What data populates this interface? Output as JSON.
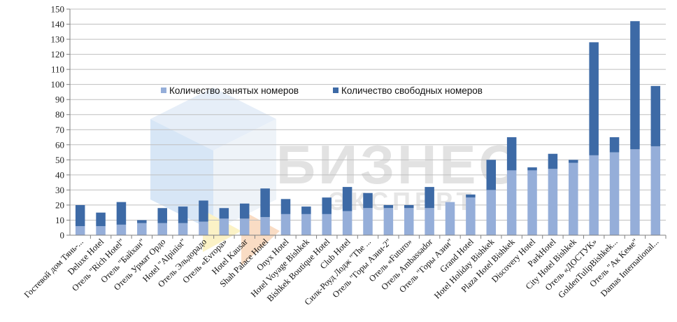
{
  "chart_data": {
    "type": "bar",
    "stacked": true,
    "categories": [
      "Гостевой дом Тянь-...",
      "Deluxe Hotel",
      "Отель \"Rich Hotel\"",
      "Отель \"Байхан\"",
      "Отель Урмат Ордо",
      "Hotel \"Alpinist\"",
      "Отель Эльдорадо",
      "Отель «Evropa»",
      "Hotel Kausar",
      "Shah Palace Hotel",
      "Onyx Hotel",
      "Hotel Voyage Bishkek",
      "Bishkek Boutique Hotel",
      "Club Hotel",
      "Силк-Роуд Лодж \"The ...",
      "Отель \"Горы Азии-2\"",
      "Отель «Futuro»",
      "Отель Ambassador",
      "Отель \"Горы Азии\"",
      "Grand Hotel",
      "Hotel Holiday Bishkek",
      "Plaza Hotel Bishkek",
      "Discovery Hotel",
      "ParkHotel",
      "City Hotel Bishkek",
      "Отель «ДОСТУК»",
      "GoldenTulipBishkek...",
      "Отель \"Ак Keме\"",
      "Damas International..."
    ],
    "series": [
      {
        "name": "Количество занятых номеров",
        "color": "#95aed9",
        "values": [
          6,
          6,
          7,
          8,
          8,
          8,
          9,
          11,
          11,
          12,
          14,
          14,
          14,
          16,
          18,
          18,
          18,
          18,
          22,
          25,
          30,
          43,
          43,
          44,
          48,
          53,
          55,
          57,
          59
        ]
      },
      {
        "name": "Количество свободных номеров",
        "color": "#3d6aa6",
        "values": [
          14,
          9,
          15,
          2,
          10,
          11,
          14,
          7,
          10,
          19,
          10,
          5,
          11,
          16,
          10,
          2,
          2,
          14,
          0,
          2,
          20,
          22,
          2,
          10,
          2,
          75,
          10,
          85,
          40
        ]
      }
    ],
    "ylim": [
      0,
      150
    ],
    "yticks": [
      0,
      10,
      20,
      30,
      40,
      50,
      60,
      70,
      80,
      90,
      100,
      110,
      120,
      130,
      140,
      150
    ],
    "grid": true,
    "legend": "top-center",
    "watermark": "БИЗНЕС ЭКСПЕРТ"
  }
}
